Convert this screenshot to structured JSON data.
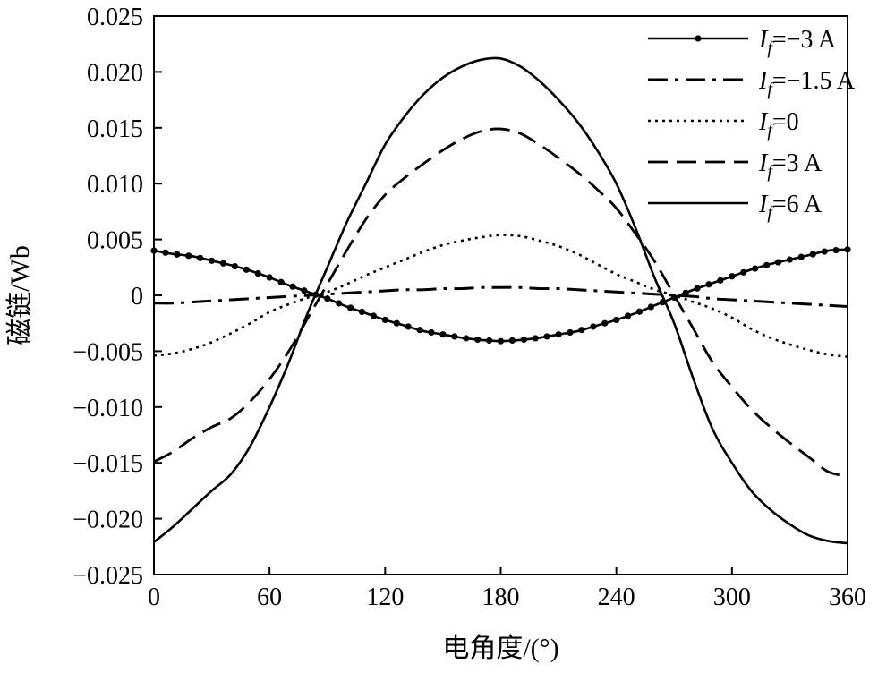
{
  "chart_data": {
    "type": "line",
    "xlabel": "电角度/(°)",
    "ylabel": "磁链/Wb",
    "xlim": [
      0,
      360
    ],
    "ylim": [
      -0.025,
      0.025
    ],
    "x_ticks": [
      "0",
      "60",
      "120",
      "180",
      "240",
      "300",
      "360"
    ],
    "y_ticks": [
      "0.025",
      "0.020",
      "0.015",
      "0.010",
      "0.005",
      "0",
      "−0.005",
      "−0.010",
      "−0.015",
      "−0.020",
      "−0.025"
    ],
    "grid": false,
    "legend_position": "top-right",
    "x": [
      0,
      10,
      20,
      30,
      40,
      50,
      60,
      70,
      80,
      90,
      100,
      110,
      120,
      130,
      140,
      150,
      160,
      170,
      180,
      190,
      200,
      210,
      220,
      230,
      240,
      250,
      260,
      270,
      280,
      290,
      300,
      310,
      320,
      330,
      340,
      350,
      360
    ],
    "series": [
      {
        "label_main": "I",
        "label_sub": "f",
        "label_rest": "=−3 A",
        "style": "solid-dots",
        "values": [
          0.004,
          0.0037,
          0.0035,
          0.0031,
          0.0027,
          0.0022,
          0.0016,
          0.0009,
          0.0003,
          -0.0003,
          -0.001,
          -0.0016,
          -0.0022,
          -0.0027,
          -0.0032,
          -0.0035,
          -0.0038,
          -0.004,
          -0.0041,
          -0.004,
          -0.0038,
          -0.0035,
          -0.0032,
          -0.0027,
          -0.0022,
          -0.0016,
          -0.0009,
          -0.0002,
          0.0005,
          0.0011,
          0.0017,
          0.0023,
          0.0028,
          0.0032,
          0.0036,
          0.004,
          0.0041
        ]
      },
      {
        "label_main": "I",
        "label_sub": "f",
        "label_rest": "=−1.5 A",
        "style": "dash-dot",
        "values": [
          -0.0007,
          -0.0007,
          -0.0006,
          -0.0005,
          -0.0004,
          -0.0003,
          -0.0002,
          -0.0001,
          0.0,
          0.0001,
          0.0002,
          0.0003,
          0.0004,
          0.0005,
          0.0005,
          0.0006,
          0.0006,
          0.0007,
          0.0007,
          0.0007,
          0.0006,
          0.0006,
          0.0005,
          0.0004,
          0.0003,
          0.0002,
          0.0001,
          0.0,
          -0.0001,
          -0.0003,
          -0.0004,
          -0.0005,
          -0.0006,
          -0.0007,
          -0.0008,
          -0.0009,
          -0.001
        ]
      },
      {
        "label_main": "I",
        "label_sub": "f",
        "label_rest": "=0",
        "style": "dotted",
        "values": [
          -0.0054,
          -0.0052,
          -0.0048,
          -0.0042,
          -0.0034,
          -0.0025,
          -0.0015,
          -0.0008,
          -0.0002,
          0.0003,
          0.001,
          0.0018,
          0.0025,
          0.0032,
          0.0039,
          0.0045,
          0.0049,
          0.0052,
          0.0054,
          0.0053,
          0.0049,
          0.0044,
          0.0037,
          0.0028,
          0.0019,
          0.0012,
          0.0005,
          0.0,
          -0.0006,
          -0.0012,
          -0.002,
          -0.003,
          -0.0038,
          -0.0044,
          -0.0049,
          -0.0053,
          -0.0055
        ]
      },
      {
        "label_main": "I",
        "label_sub": "f",
        "label_rest": "=3 A",
        "style": "dashed",
        "values": [
          -0.0149,
          -0.014,
          -0.0128,
          -0.0118,
          -0.011,
          -0.0095,
          -0.0075,
          -0.005,
          -0.002,
          0.001,
          0.004,
          0.0068,
          0.009,
          0.0105,
          0.0118,
          0.013,
          0.014,
          0.0147,
          0.0149,
          0.0145,
          0.0135,
          0.0123,
          0.011,
          0.0095,
          0.0078,
          0.0055,
          0.003,
          0.0,
          -0.003,
          -0.006,
          -0.0082,
          -0.0102,
          -0.0118,
          -0.0132,
          -0.0145,
          -0.0158,
          -0.0162
        ]
      },
      {
        "label_main": "I",
        "label_sub": "f",
        "label_rest": "=6 A",
        "style": "solid",
        "values": [
          -0.0221,
          -0.0207,
          -0.0191,
          -0.0175,
          -0.016,
          -0.0135,
          -0.01,
          -0.006,
          -0.0015,
          0.0025,
          0.0065,
          0.01,
          0.0135,
          0.016,
          0.018,
          0.0195,
          0.0205,
          0.0211,
          0.0212,
          0.0205,
          0.0192,
          0.0175,
          0.0155,
          0.013,
          0.01,
          0.006,
          0.0015,
          -0.0025,
          -0.0075,
          -0.012,
          -0.015,
          -0.0175,
          -0.0192,
          -0.0205,
          -0.0215,
          -0.022,
          -0.0222
        ]
      }
    ]
  }
}
